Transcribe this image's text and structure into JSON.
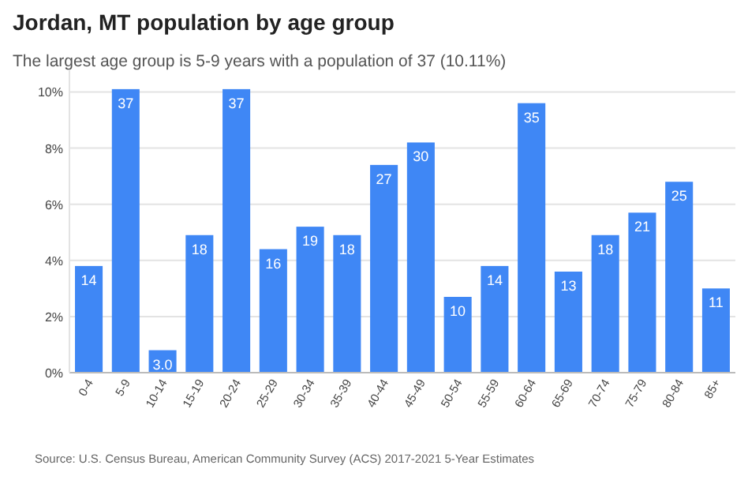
{
  "chart_data": {
    "type": "bar",
    "title": "Jordan, MT population by age group",
    "subtitle": "The largest age group is 5-9 years with a population of 37 (10.11%)",
    "categories": [
      "0-4",
      "5-9",
      "10-14",
      "15-19",
      "20-24",
      "25-29",
      "30-34",
      "35-39",
      "40-44",
      "45-49",
      "50-54",
      "55-59",
      "60-64",
      "65-69",
      "70-74",
      "75-79",
      "80-84",
      "85+"
    ],
    "values": [
      3.8,
      10.1,
      0.8,
      4.9,
      10.1,
      4.4,
      5.2,
      4.9,
      7.4,
      8.2,
      2.7,
      3.8,
      9.6,
      3.6,
      4.9,
      5.7,
      6.8,
      3.0
    ],
    "color": "#3f87f5",
    "ylim": [
      0,
      10.8
    ],
    "yticks": [
      {
        "value": 0,
        "label": "0%"
      },
      {
        "value": 2,
        "label": "2%"
      },
      {
        "value": 4,
        "label": "4%"
      },
      {
        "value": 6,
        "label": "6%"
      },
      {
        "value": 8,
        "label": "8%"
      },
      {
        "value": 10,
        "label": "10%"
      }
    ],
    "grid": "y",
    "annotations": [
      {
        "text": "14",
        "x": "0-4",
        "y": 3.8
      },
      {
        "text": "37",
        "x": "5-9",
        "y": 10.1
      },
      {
        "text": "3.0",
        "x": "10-14",
        "y": 0.8
      },
      {
        "text": "18",
        "x": "15-19",
        "y": 4.9
      },
      {
        "text": "37",
        "x": "20-24",
        "y": 10.1
      },
      {
        "text": "16",
        "x": "25-29",
        "y": 4.4
      },
      {
        "text": "19",
        "x": "30-34",
        "y": 5.2
      },
      {
        "text": "18",
        "x": "35-39",
        "y": 4.9
      },
      {
        "text": "27",
        "x": "40-44",
        "y": 7.4
      },
      {
        "text": "30",
        "x": "45-49",
        "y": 8.2
      },
      {
        "text": "10",
        "x": "50-54",
        "y": 2.7
      },
      {
        "text": "14",
        "x": "55-59",
        "y": 3.8
      },
      {
        "text": "35",
        "x": "60-64",
        "y": 9.6
      },
      {
        "text": "13",
        "x": "65-69",
        "y": 3.6
      },
      {
        "text": "18",
        "x": "70-74",
        "y": 4.9
      },
      {
        "text": "21",
        "x": "75-79",
        "y": 5.7
      },
      {
        "text": "25",
        "x": "80-84",
        "y": 6.8
      },
      {
        "text": "11",
        "x": "85+",
        "y": 3.0
      },
      "Source: U.S. Census Bureau, American Community Survey (ACS) 2017-2021 5-Year Estimates"
    ]
  }
}
